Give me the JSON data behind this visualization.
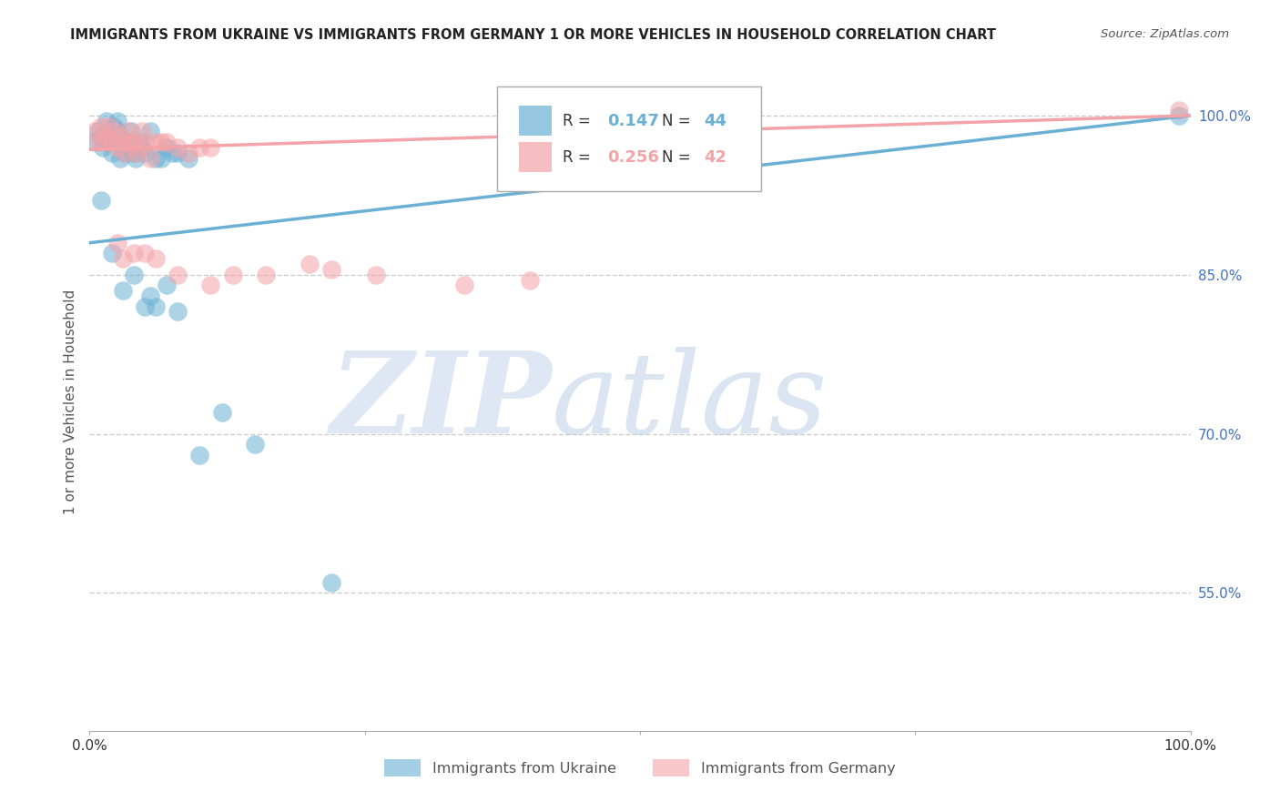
{
  "title": "IMMIGRANTS FROM UKRAINE VS IMMIGRANTS FROM GERMANY 1 OR MORE VEHICLES IN HOUSEHOLD CORRELATION CHART",
  "source": "Source: ZipAtlas.com",
  "ylabel": "1 or more Vehicles in Household",
  "watermark_zip": "ZIP",
  "watermark_atlas": "atlas",
  "xlim": [
    0.0,
    1.0
  ],
  "ylim": [
    0.42,
    1.04
  ],
  "ytick_values": [
    0.55,
    0.7,
    0.85,
    1.0
  ],
  "ukraine_color": "#6ab0d4",
  "germany_color": "#f4a3a8",
  "ukraine_R": 0.147,
  "ukraine_N": 44,
  "germany_R": 0.256,
  "germany_N": 42,
  "legend_label_ukraine": "Immigrants from Ukraine",
  "legend_label_germany": "Immigrants from Germany",
  "ukraine_scatter_x": [
    0.005,
    0.008,
    0.01,
    0.012,
    0.015,
    0.015,
    0.018,
    0.02,
    0.022,
    0.023,
    0.025,
    0.025,
    0.028,
    0.03,
    0.03,
    0.032,
    0.035,
    0.038,
    0.04,
    0.042,
    0.045,
    0.048,
    0.05,
    0.055,
    0.06,
    0.065,
    0.07,
    0.075,
    0.08,
    0.09,
    0.01,
    0.02,
    0.03,
    0.04,
    0.05,
    0.055,
    0.06,
    0.07,
    0.08,
    0.1,
    0.12,
    0.15,
    0.22,
    0.99
  ],
  "ukraine_scatter_y": [
    0.975,
    0.985,
    0.98,
    0.97,
    0.995,
    0.975,
    0.98,
    0.965,
    0.99,
    0.975,
    0.985,
    0.995,
    0.96,
    0.97,
    0.975,
    0.965,
    0.975,
    0.985,
    0.965,
    0.96,
    0.975,
    0.97,
    0.965,
    0.985,
    0.96,
    0.96,
    0.97,
    0.965,
    0.965,
    0.96,
    0.92,
    0.87,
    0.835,
    0.85,
    0.82,
    0.83,
    0.82,
    0.84,
    0.815,
    0.68,
    0.72,
    0.69,
    0.56,
    1.0
  ],
  "germany_scatter_x": [
    0.005,
    0.008,
    0.01,
    0.012,
    0.015,
    0.018,
    0.02,
    0.022,
    0.025,
    0.028,
    0.03,
    0.032,
    0.035,
    0.038,
    0.04,
    0.042,
    0.045,
    0.048,
    0.05,
    0.055,
    0.06,
    0.065,
    0.07,
    0.08,
    0.09,
    0.1,
    0.11,
    0.025,
    0.03,
    0.04,
    0.05,
    0.06,
    0.08,
    0.11,
    0.13,
    0.16,
    0.2,
    0.22,
    0.26,
    0.34,
    0.4,
    0.99
  ],
  "germany_scatter_y": [
    0.985,
    0.975,
    0.99,
    0.975,
    0.98,
    0.99,
    0.975,
    0.985,
    0.97,
    0.98,
    0.975,
    0.965,
    0.985,
    0.975,
    0.975,
    0.965,
    0.97,
    0.985,
    0.975,
    0.96,
    0.975,
    0.975,
    0.975,
    0.97,
    0.965,
    0.97,
    0.97,
    0.88,
    0.865,
    0.87,
    0.87,
    0.865,
    0.85,
    0.84,
    0.85,
    0.85,
    0.86,
    0.855,
    0.85,
    0.84,
    0.845,
    1.005
  ],
  "background_color": "#ffffff",
  "grid_color": "#cccccc",
  "ukraine_line_start_y": 0.88,
  "ukraine_line_end_y": 1.0,
  "germany_line_start_y": 0.968,
  "germany_line_end_y": 1.0
}
